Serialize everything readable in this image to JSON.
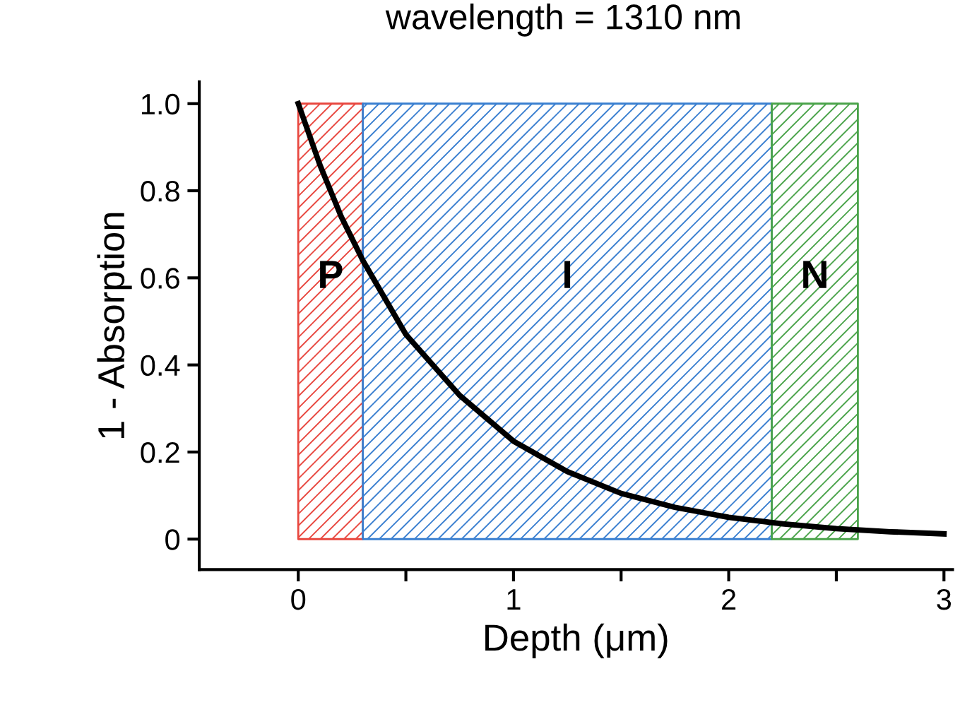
{
  "chart_data": {
    "type": "line",
    "title": "wavelength = 1310 nm",
    "xlabel": "Depth (μm)",
    "ylabel": "1 - Absorption",
    "x": [
      0,
      0.1,
      0.2,
      0.3,
      0.5,
      0.75,
      1.0,
      1.25,
      1.5,
      1.75,
      2.0,
      2.25,
      2.5,
      2.75,
      3.0
    ],
    "series": [
      {
        "color": "#000000",
        "values": [
          1.0,
          0.86,
          0.74,
          0.64,
          0.47,
          0.33,
          0.225,
          0.155,
          0.105,
          0.073,
          0.05,
          0.035,
          0.024,
          0.017,
          0.012
        ]
      }
    ],
    "bands": [
      {
        "axis": "x",
        "from": 0,
        "to": 0.3,
        "label": "P",
        "color": "#e8473f"
      },
      {
        "axis": "x",
        "from": 0.3,
        "to": 2.2,
        "label": "I",
        "color": "#3a7fd0"
      },
      {
        "axis": "x",
        "from": 2.2,
        "to": 2.6,
        "label": "N",
        "color": "#4aa34a"
      }
    ],
    "xlim": [
      -0.46,
      3.04
    ],
    "ylim": [
      -0.07,
      1.05
    ],
    "xticks": [
      0,
      {
        "value": 0.5,
        "label": null
      },
      1,
      {
        "value": 1.5,
        "label": null
      },
      2,
      {
        "value": 2.5,
        "label": null
      },
      3
    ],
    "yticks": [
      {
        "value": 0,
        "label": "0"
      },
      0.2,
      0.4,
      0.6,
      0.8,
      {
        "value": 1.0,
        "label": "1.0"
      }
    ],
    "grid": false,
    "legend": false,
    "marker": "none",
    "line_style": "solid"
  }
}
